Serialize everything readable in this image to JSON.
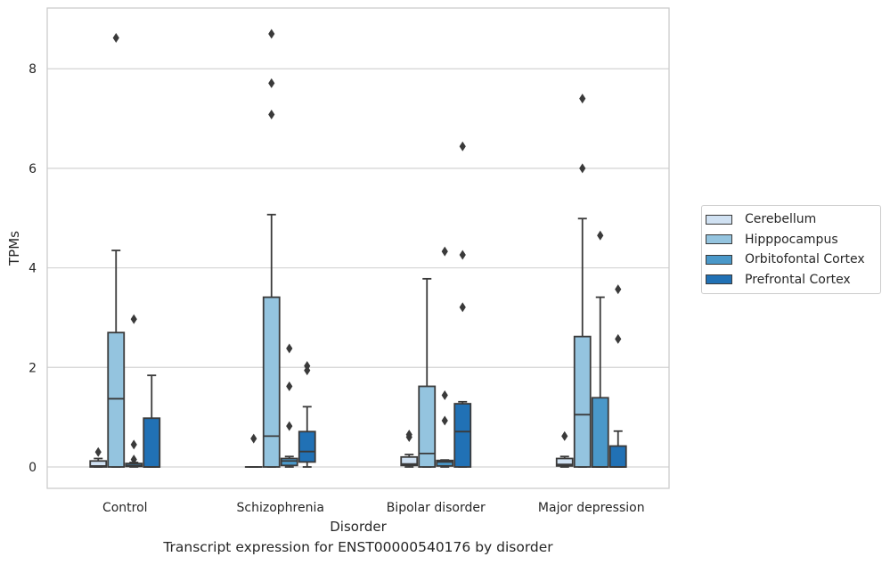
{
  "chart_data": {
    "type": "box",
    "title": "",
    "caption": "Transcript expression for ENST00000540176 by disorder",
    "xlabel": "Disorder",
    "ylabel": "TPMs",
    "ylim": [
      -0.43,
      9.22
    ],
    "yticks": [
      0,
      2,
      4,
      6,
      8
    ],
    "grid": "horizontal",
    "legend_position": "right",
    "categories": [
      "Control",
      "Schizophrenia",
      "Bipolar disorder",
      "Major depression"
    ],
    "series": [
      {
        "name": "Cerebellum",
        "color": "#d0e1f2",
        "boxes": [
          {
            "whisker_low": 0,
            "q1": 0,
            "median": 0.02,
            "q3": 0.12,
            "whisker_high": 0.17,
            "outliers": [
              0.3
            ]
          },
          {
            "whisker_low": 0,
            "q1": 0,
            "median": 0,
            "q3": 0,
            "whisker_high": 0,
            "outliers": [
              0.57
            ]
          },
          {
            "whisker_low": 0,
            "q1": 0.03,
            "median": 0.06,
            "q3": 0.2,
            "whisker_high": 0.25,
            "outliers": [
              0.6,
              0.65
            ]
          },
          {
            "whisker_low": 0,
            "q1": 0.02,
            "median": 0.05,
            "q3": 0.17,
            "whisker_high": 0.21,
            "outliers": [
              0.62
            ]
          }
        ]
      },
      {
        "name": "Hipppocampus",
        "color": "#94c4df",
        "boxes": [
          {
            "whisker_low": 0,
            "q1": 0,
            "median": 1.37,
            "q3": 2.7,
            "whisker_high": 4.35,
            "outliers": [
              8.62
            ]
          },
          {
            "whisker_low": 0,
            "q1": 0,
            "median": 0.62,
            "q3": 3.41,
            "whisker_high": 5.07,
            "outliers": [
              7.08,
              7.71,
              8.7
            ]
          },
          {
            "whisker_low": 0,
            "q1": 0,
            "median": 0.27,
            "q3": 1.62,
            "whisker_high": 3.78,
            "outliers": []
          },
          {
            "whisker_low": 0,
            "q1": 0,
            "median": 1.05,
            "q3": 2.62,
            "whisker_high": 4.99,
            "outliers": [
              6.0,
              7.4
            ]
          }
        ]
      },
      {
        "name": "Orbitofontal Cortex",
        "color": "#4a98c9",
        "boxes": [
          {
            "whisker_low": 0,
            "q1": 0.01,
            "median": 0.03,
            "q3": 0.07,
            "whisker_high": 0.09,
            "outliers": [
              0.15,
              0.45,
              2.97
            ]
          },
          {
            "whisker_low": 0,
            "q1": 0.03,
            "median": 0.12,
            "q3": 0.17,
            "whisker_high": 0.21,
            "outliers": [
              0.82,
              1.62,
              2.38
            ]
          },
          {
            "whisker_low": 0,
            "q1": 0.02,
            "median": 0.1,
            "q3": 0.13,
            "whisker_high": 0.14,
            "outliers": [
              0.93,
              1.44,
              4.33
            ]
          },
          {
            "whisker_low": 0,
            "q1": 0,
            "median": 0,
            "q3": 1.39,
            "whisker_high": 3.41,
            "outliers": [
              4.65
            ]
          }
        ]
      },
      {
        "name": "Prefrontal Cortex",
        "color": "#2171b5",
        "boxes": [
          {
            "whisker_low": 0,
            "q1": 0,
            "median": 0,
            "q3": 0.98,
            "whisker_high": 1.84,
            "outliers": []
          },
          {
            "whisker_low": 0,
            "q1": 0.1,
            "median": 0.31,
            "q3": 0.71,
            "whisker_high": 1.21,
            "outliers": [
              1.94,
              2.03
            ]
          },
          {
            "whisker_low": 0,
            "q1": 0,
            "median": 0.71,
            "q3": 1.27,
            "whisker_high": 1.31,
            "outliers": [
              3.21,
              4.26,
              6.44
            ]
          },
          {
            "whisker_low": 0,
            "q1": 0,
            "median": 0,
            "q3": 0.42,
            "whisker_high": 0.72,
            "outliers": [
              2.57,
              3.57
            ]
          }
        ]
      }
    ]
  }
}
